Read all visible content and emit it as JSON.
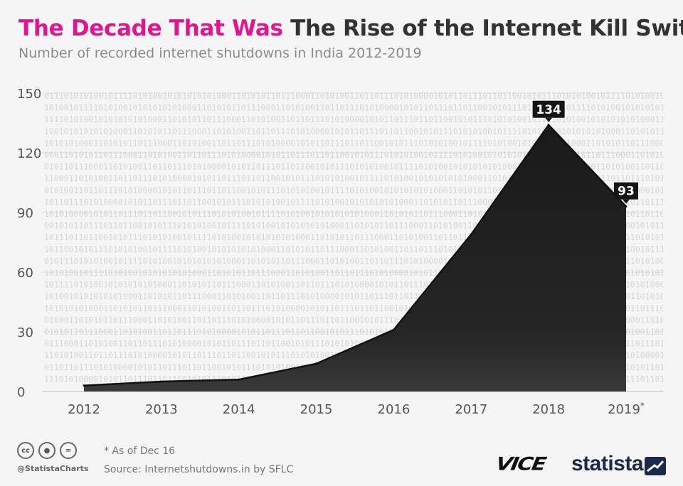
{
  "header": {
    "highlight": "The Decade That Was",
    "title": "The Rise of the Internet Kill Switch",
    "subtitle": "Number of recorded internet shutdowns in India 2012-2019"
  },
  "chart_data": {
    "type": "area",
    "title": "The Rise of the Internet Kill Switch",
    "subtitle": "Number of recorded internet shutdowns in India 2012-2019",
    "categories": [
      "2012",
      "2013",
      "2014",
      "2015",
      "2016",
      "2017",
      "2018",
      "2019*"
    ],
    "series": [
      {
        "name": "Internet shutdowns",
        "values": [
          3,
          5,
          6,
          14,
          31,
          79,
          134,
          93
        ]
      }
    ],
    "data_labels": [
      {
        "category": "2018",
        "value": 134,
        "text": "134"
      },
      {
        "category": "2019*",
        "value": 93,
        "text": "93"
      }
    ],
    "ylim": [
      0,
      150
    ],
    "yticks": [
      0,
      30,
      60,
      90,
      120,
      150
    ],
    "xlabel": "",
    "ylabel": "",
    "grid": true,
    "fill_color": "#1e1e1e",
    "binary_text": "0111010101001011110101001010101010100011010101101110001101010011011011101010000101011011101101100101"
  },
  "footer": {
    "handle": "@StatistaCharts",
    "note": "* As of Dec 16",
    "source": "Source: Internetshutdowns.in by SFLC",
    "brand_vice": "VICE",
    "brand_statista": "statista"
  },
  "colors": {
    "accent": "#e0158f",
    "title": "#333333",
    "subtitle": "#8a8a8a"
  }
}
